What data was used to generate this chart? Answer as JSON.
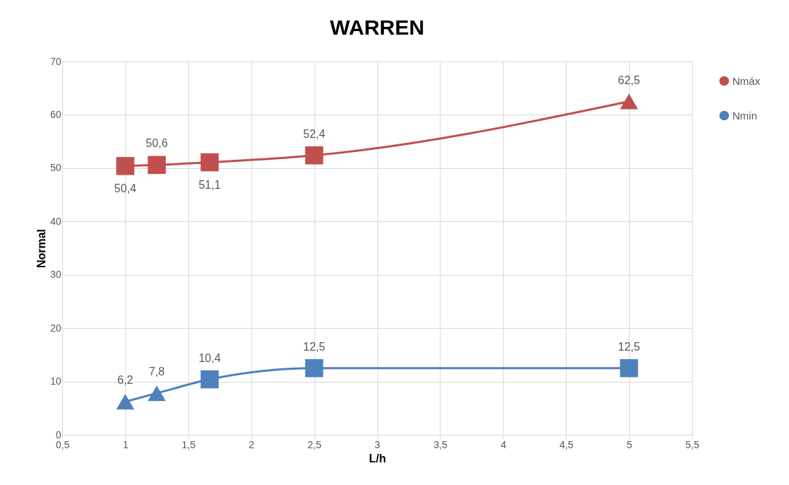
{
  "chart_data": {
    "type": "line",
    "title": "WARREN",
    "xlabel": "L/h",
    "ylabel": "Normal",
    "xlim": [
      0.5,
      5.5
    ],
    "xticks": [
      {
        "value": 0.5,
        "label": "0,5"
      },
      1,
      {
        "value": 1.5,
        "label": "1,5"
      },
      2,
      {
        "value": 2.5,
        "label": "2,5"
      },
      3,
      {
        "value": 3.5,
        "label": "3,5"
      },
      4,
      {
        "value": 4.5,
        "label": "4,5"
      },
      5,
      {
        "value": 5.5,
        "label": "5,5"
      }
    ],
    "ylim": [
      0,
      70
    ],
    "yticks": [
      0,
      10,
      20,
      30,
      40,
      50,
      60,
      70
    ],
    "grid": true,
    "legend": "right",
    "line_style": "solid",
    "series": [
      {
        "name": "Nmáx",
        "color": "#c0504d",
        "x": [
          1,
          1.25,
          1.67,
          2.5,
          5
        ],
        "values": [
          50.4,
          50.6,
          51.1,
          52.4,
          62.5
        ],
        "marker": [
          "square",
          "square",
          "square",
          "square",
          "triangle"
        ],
        "value_labels": [
          "50,4",
          "50,6",
          "51,1",
          "52,4",
          "62,5"
        ]
      },
      {
        "name": "Nmin",
        "color": "#4f81bd",
        "x": [
          1,
          1.25,
          1.67,
          2.5,
          5
        ],
        "values": [
          6.2,
          7.8,
          10.4,
          12.5,
          12.5
        ],
        "marker": [
          "triangle",
          "triangle",
          "square",
          "square",
          "square"
        ],
        "value_labels": [
          "6,2",
          "7,8",
          "10,4",
          "12,5",
          "12,5"
        ]
      }
    ]
  }
}
